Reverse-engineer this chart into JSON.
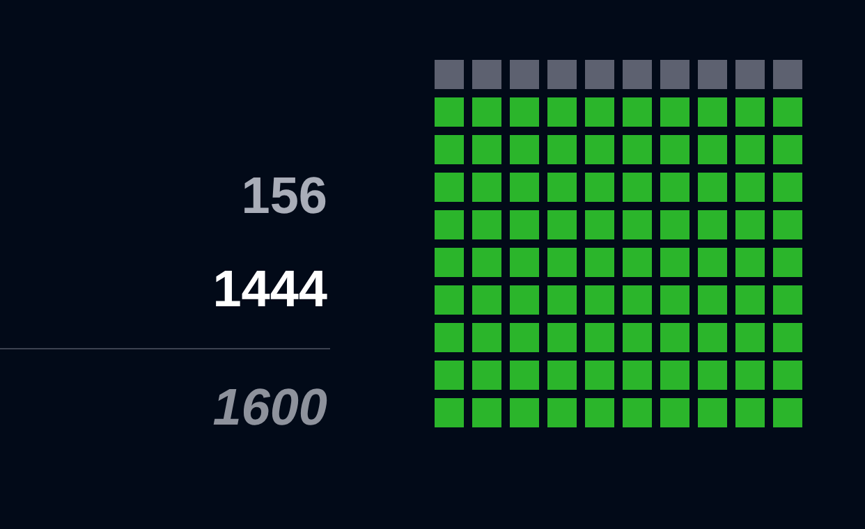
{
  "chart_data": {
    "type": "other",
    "categories": [
      null,
      null
    ],
    "values": [
      156,
      1444
    ],
    "colors": [
      "#5d6170",
      "#2bb52b"
    ],
    "data_labels": true,
    "totals": [
      "1600"
    ]
  }
}
